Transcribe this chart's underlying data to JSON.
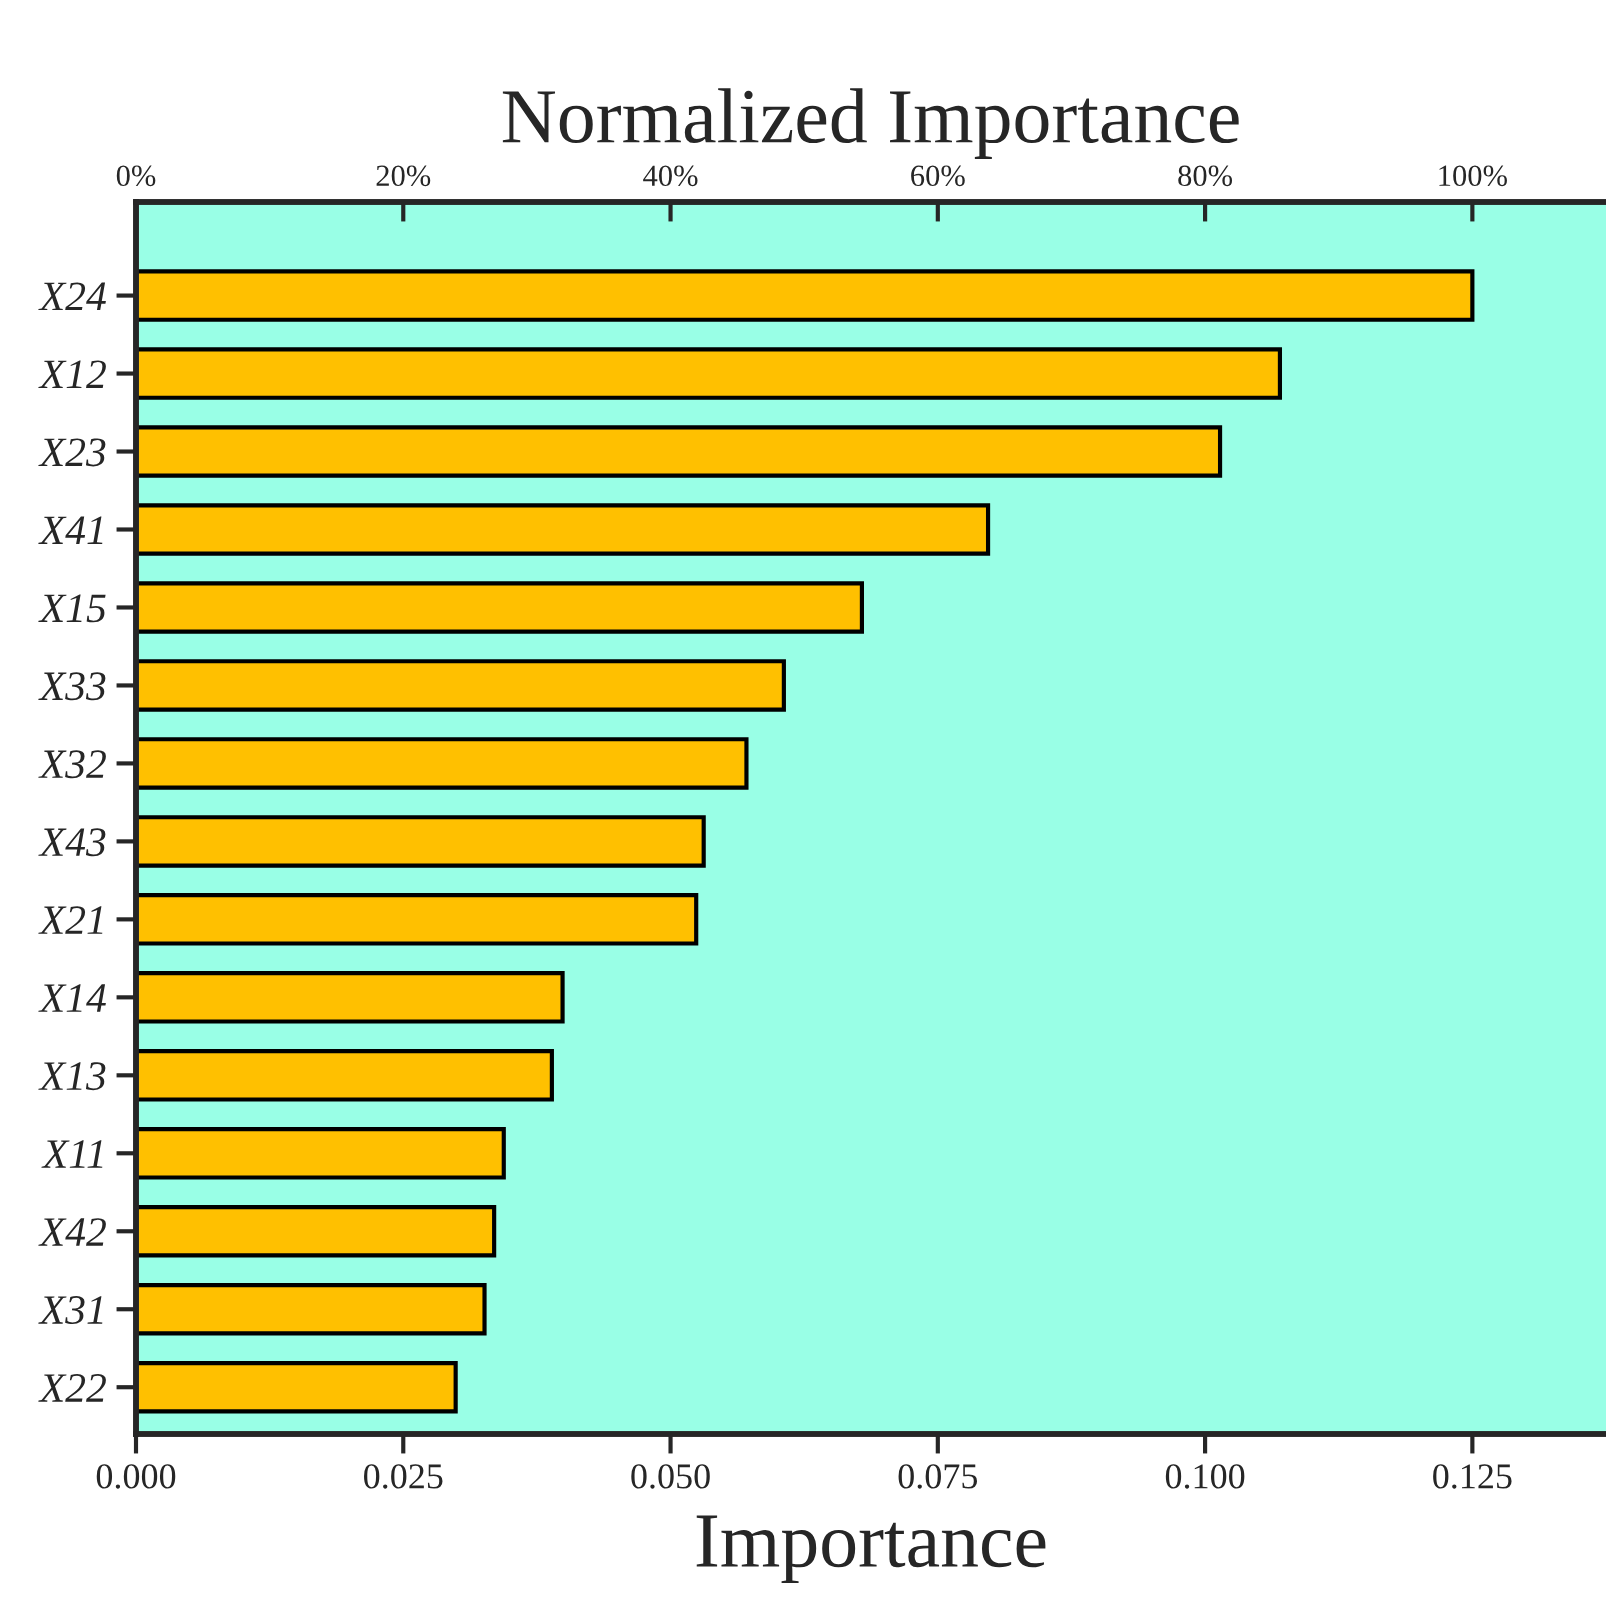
{
  "chart_data": {
    "type": "bar",
    "orientation": "horizontal",
    "xlabel": "Importance",
    "x2label": "Normalized Importance",
    "categories": [
      "X24",
      "X12",
      "X23",
      "X41",
      "X15",
      "X33",
      "X32",
      "X43",
      "X21",
      "X14",
      "X13",
      "X11",
      "X42",
      "X31",
      "X22"
    ],
    "values": [
      0.125,
      0.107,
      0.1014,
      0.0797,
      0.0679,
      0.0606,
      0.0571,
      0.0531,
      0.0524,
      0.0399,
      0.0389,
      0.0344,
      0.0335,
      0.0326,
      0.0299
    ],
    "color": "#ffc000",
    "xlim": [
      0,
      0.1375
    ],
    "xticks": [
      {
        "value": 0,
        "label": "0.000"
      },
      {
        "value": 0.025,
        "label": "0.025"
      },
      {
        "value": 0.05,
        "label": "0.050"
      },
      {
        "value": 0.075,
        "label": "0.075"
      },
      {
        "value": 0.1,
        "label": "0.100"
      },
      {
        "value": 0.125,
        "label": "0.125"
      }
    ],
    "x2lim": [
      0,
      110
    ],
    "x2ticks": [
      {
        "value": 0,
        "label": "0%"
      },
      {
        "value": 20,
        "label": "20%"
      },
      {
        "value": 40,
        "label": "40%"
      },
      {
        "value": 60,
        "label": "60%"
      },
      {
        "value": 80,
        "label": "80%"
      },
      {
        "value": 100,
        "label": "100%"
      }
    ],
    "grid": false,
    "legend": false
  }
}
